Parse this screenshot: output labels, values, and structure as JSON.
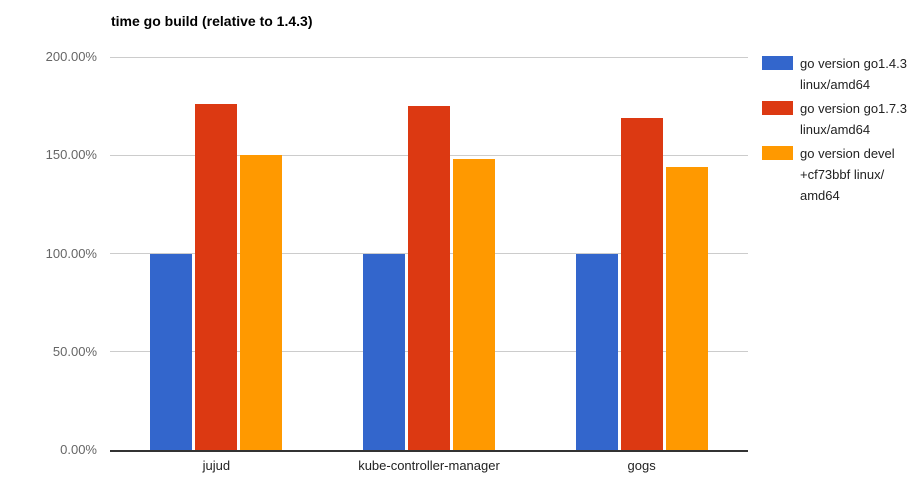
{
  "title": "time go build (relative to 1.4.3)",
  "colors": {
    "background": "#ffffff",
    "gridline": "#cccccc",
    "baseline": "#333333",
    "axis_label_text": "#666666",
    "category_label_text": "#222222",
    "legend_text": "#222222",
    "title_text": "#000000",
    "series_blue": "#3366cc",
    "series_red": "#dc3912",
    "series_orange": "#ff9900"
  },
  "chart_data": {
    "type": "bar",
    "title": "time go build (relative to 1.4.3)",
    "xlabel": "",
    "ylabel": "",
    "value_unit": "%",
    "ylim": [
      0,
      200
    ],
    "grid": true,
    "legend_position": "right",
    "categories": [
      "jujud",
      "kube-controller-manager",
      "gogs"
    ],
    "series": [
      {
        "name": "go version go1.4.3 linux/amd64",
        "legend_lines": [
          "go version go1.4.3",
          "linux/amd64"
        ],
        "color": "#3366cc",
        "values": [
          100,
          100,
          100
        ]
      },
      {
        "name": "go version go1.7.3 linux/amd64",
        "legend_lines": [
          "go version go1.7.3",
          "linux/amd64"
        ],
        "color": "#dc3912",
        "values": [
          176,
          175,
          169
        ]
      },
      {
        "name": "go version devel +cf73bbf linux/amd64",
        "legend_lines": [
          "go version devel",
          "+cf73bbf linux/",
          "amd64"
        ],
        "color": "#ff9900",
        "values": [
          150,
          148,
          144
        ]
      }
    ],
    "yticks": [
      {
        "value": 0,
        "label": "0.00%"
      },
      {
        "value": 50,
        "label": "50.00%"
      },
      {
        "value": 100,
        "label": "100.00%"
      },
      {
        "value": 150,
        "label": "150.00%"
      },
      {
        "value": 200,
        "label": "200.00%"
      }
    ]
  }
}
